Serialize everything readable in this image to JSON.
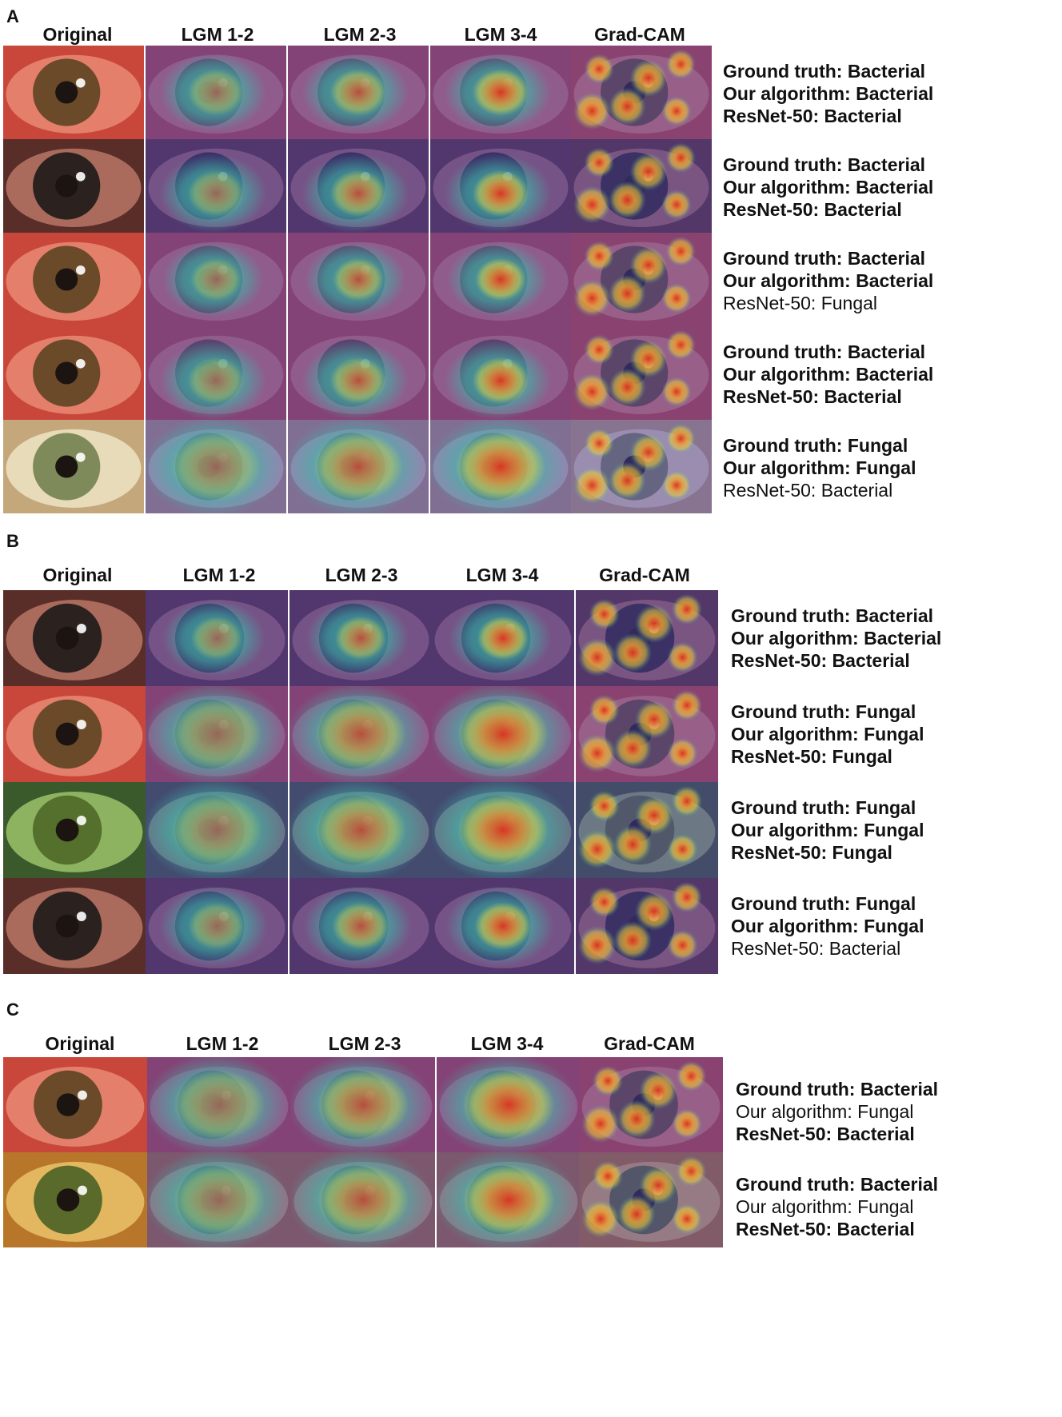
{
  "panels": [
    {
      "letter": "A",
      "columns": [
        "Original",
        "LGM 1-2",
        "LGM 2-3",
        "LGM 3-4",
        "Grad-CAM"
      ],
      "rows": [
        {
          "lines": [
            {
              "text": "Ground truth: Bacterial",
              "bold": true
            },
            {
              "text": "Our algorithm: Bacterial",
              "bold": true
            },
            {
              "text": "ResNet-50: Bacterial",
              "bold": true
            }
          ],
          "tone": "red",
          "heat": "small-center"
        },
        {
          "lines": [
            {
              "text": "Ground truth: Bacterial",
              "bold": true
            },
            {
              "text": "Our algorithm: Bacterial",
              "bold": true
            },
            {
              "text": "ResNet-50: Bacterial",
              "bold": true
            }
          ],
          "tone": "dark",
          "heat": "lower-center"
        },
        {
          "lines": [
            {
              "text": "Ground truth: Bacterial",
              "bold": true
            },
            {
              "text": "Our algorithm: Bacterial",
              "bold": true
            },
            {
              "text": "ResNet-50: Fungal",
              "bold": false
            }
          ],
          "tone": "red",
          "heat": "weak"
        },
        {
          "lines": [
            {
              "text": "Ground truth: Bacterial",
              "bold": true
            },
            {
              "text": "Our algorithm: Bacterial",
              "bold": true
            },
            {
              "text": "ResNet-50: Bacterial",
              "bold": true
            }
          ],
          "tone": "red",
          "heat": "lower-center"
        },
        {
          "lines": [
            {
              "text": "Ground truth: Fungal",
              "bold": true
            },
            {
              "text": "Our algorithm: Fungal",
              "bold": true
            },
            {
              "text": "ResNet-50: Bacterial",
              "bold": false
            }
          ],
          "tone": "pale",
          "heat": "large"
        }
      ]
    },
    {
      "letter": "B",
      "columns": [
        "Original",
        "LGM 1-2",
        "LGM 2-3",
        "LGM 3-4",
        "Grad-CAM"
      ],
      "rows": [
        {
          "lines": [
            {
              "text": "Ground truth: Bacterial",
              "bold": true
            },
            {
              "text": "Our algorithm: Bacterial",
              "bold": true
            },
            {
              "text": "ResNet-50: Bacterial",
              "bold": true
            }
          ],
          "tone": "dark",
          "heat": "weak"
        },
        {
          "lines": [
            {
              "text": "Ground truth: Fungal",
              "bold": true
            },
            {
              "text": "Our algorithm: Fungal",
              "bold": true
            },
            {
              "text": "ResNet-50: Fungal",
              "bold": true
            }
          ],
          "tone": "red",
          "heat": "large"
        },
        {
          "lines": [
            {
              "text": "Ground truth: Fungal",
              "bold": true
            },
            {
              "text": "Our algorithm: Fungal",
              "bold": true
            },
            {
              "text": "ResNet-50: Fungal",
              "bold": true
            }
          ],
          "tone": "green",
          "heat": "large"
        },
        {
          "lines": [
            {
              "text": "Ground truth: Fungal",
              "bold": true
            },
            {
              "text": "Our algorithm: Fungal",
              "bold": true
            },
            {
              "text": "ResNet-50: Bacterial",
              "bold": false
            }
          ],
          "tone": "dark",
          "heat": "small-center"
        }
      ]
    },
    {
      "letter": "C",
      "columns": [
        "Original",
        "LGM 1-2",
        "LGM 2-3",
        "LGM 3-4",
        "Grad-CAM"
      ],
      "rows": [
        {
          "lines": [
            {
              "text": "Ground truth: Bacterial",
              "bold": true
            },
            {
              "text": "Our algorithm: Fungal",
              "bold": false
            },
            {
              "text": "ResNet-50: Bacterial",
              "bold": true
            }
          ],
          "tone": "red",
          "heat": "large"
        },
        {
          "lines": [
            {
              "text": "Ground truth: Bacterial",
              "bold": true
            },
            {
              "text": "Our algorithm: Fungal",
              "bold": false
            },
            {
              "text": "ResNet-50: Bacterial",
              "bold": true
            }
          ],
          "tone": "yellow",
          "heat": "large"
        }
      ]
    }
  ],
  "colors": {
    "overlay_blue": "#4b3fa8",
    "overlay_teal": "#3fb5a8",
    "heat_red": "#e0301e",
    "heat_yellow": "#f1d43a"
  }
}
